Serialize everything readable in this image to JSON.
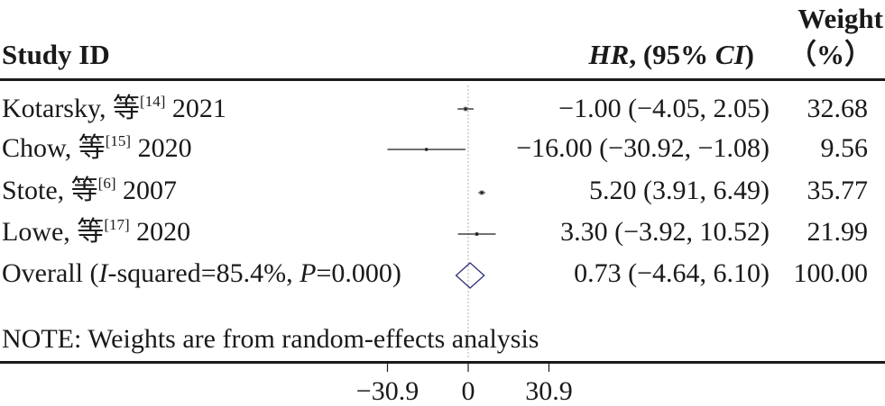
{
  "header": {
    "study_id": "Study ID",
    "effect_label": "HR",
    "effect_rest": ", (95% ",
    "ci_label": "CI",
    "effect_close": ")",
    "weight_top": "Weight",
    "weight_unit": "（%）"
  },
  "rows": [
    {
      "label_main": "Kotarsky, 等",
      "ref": "[14]",
      "label_year": " 2021",
      "estimate_text": "−1.00 (−4.05, 2.05)",
      "weight_text": "32.68"
    },
    {
      "label_main": "Chow, 等",
      "ref": "[15]",
      "label_year": " 2020",
      "estimate_text": "−16.00 (−30.92, −1.08)",
      "weight_text": "9.56"
    },
    {
      "label_main": "Stote, 等",
      "ref": "[6]",
      "label_year": " 2007",
      "estimate_text": "5.20 (3.91, 6.49)",
      "weight_text": "35.77"
    },
    {
      "label_main": "Lowe, 等",
      "ref": "[17]",
      "label_year": " 2020",
      "estimate_text": "3.30 (−3.92, 10.52)",
      "weight_text": "21.99"
    }
  ],
  "overall": {
    "label_pre": "Overall (",
    "i_label": "I",
    "label_mid": "-squared=85.4%, ",
    "p_label": "P",
    "label_post": "=0.000)",
    "estimate_text": "0.73 (−4.64, 6.10)",
    "weight_text": "100.00"
  },
  "note": "NOTE: Weights are from random-effects analysis",
  "axis": {
    "ticks": [
      "−30.9",
      "0",
      "30.9"
    ]
  },
  "colors": {
    "text": "#1a1a1a",
    "marker": "#8c8c8c",
    "null_line": "#b3b3b3"
  },
  "chart_data": {
    "type": "forest",
    "effect_measure": "HR",
    "studies": [
      {
        "name": "Kotarsky, 等[14] 2021",
        "estimate": -1.0,
        "ci_low": -4.05,
        "ci_high": 2.05,
        "weight": 32.68
      },
      {
        "name": "Chow, 等[15] 2020",
        "estimate": -16.0,
        "ci_low": -30.92,
        "ci_high": -1.08,
        "weight": 9.56
      },
      {
        "name": "Stote, 等[6] 2007",
        "estimate": 5.2,
        "ci_low": 3.91,
        "ci_high": 6.49,
        "weight": 35.77
      },
      {
        "name": "Lowe, 等[17] 2020",
        "estimate": 3.3,
        "ci_low": -3.92,
        "ci_high": 10.52,
        "weight": 21.99
      }
    ],
    "overall": {
      "estimate": 0.73,
      "ci_low": -4.64,
      "ci_high": 6.1,
      "weight": 100.0,
      "i_squared": 85.4,
      "p": 0.0
    },
    "x_ticks": [
      -30.9,
      0,
      30.9
    ],
    "xlim": [
      -30.9,
      30.9
    ],
    "null_line": 0
  }
}
